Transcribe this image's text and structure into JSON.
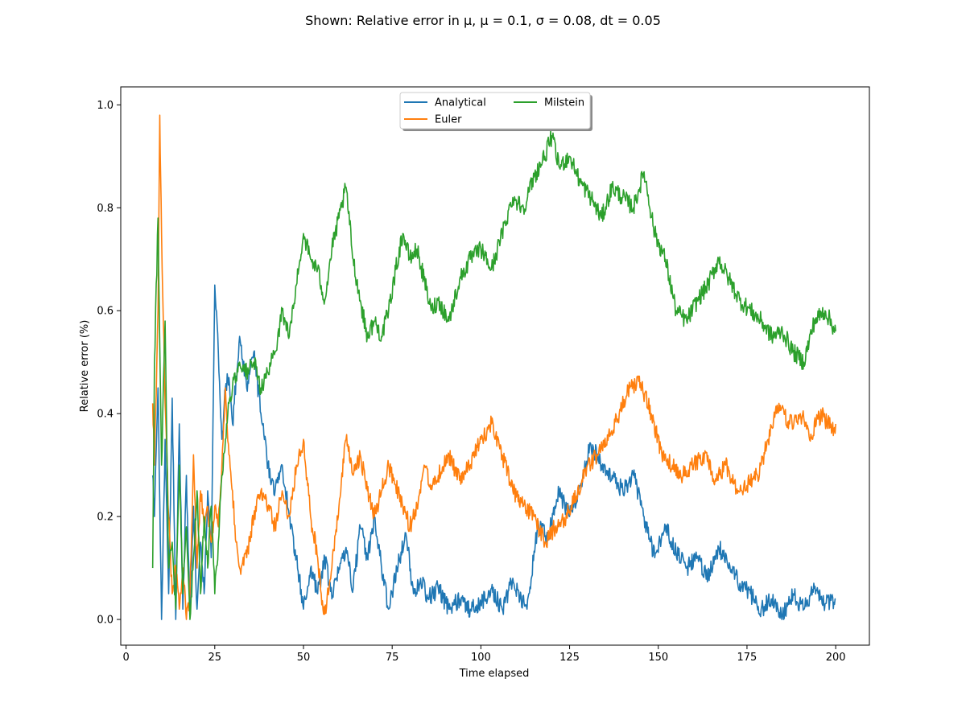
{
  "figure": {
    "title": "Shown: Relative error in μ, μ = 0.1, σ = 0.08, dt = 0.05"
  },
  "chart_data": {
    "type": "line",
    "title": "Shown: Relative error in μ, μ = 0.1, σ = 0.08, dt = 0.05",
    "xlabel": "Time elapsed",
    "ylabel": "Relative error (%)",
    "xlim": [
      -1.5,
      209.5
    ],
    "ylim": [
      -0.05,
      1.035
    ],
    "xticks": [
      0,
      25,
      50,
      75,
      100,
      125,
      150,
      175,
      200
    ],
    "xtick_labels": [
      "0",
      "25",
      "50",
      "75",
      "100",
      "125",
      "150",
      "175",
      "200"
    ],
    "yticks": [
      0.0,
      0.2,
      0.4,
      0.6,
      0.8,
      1.0
    ],
    "ytick_labels": [
      "0.0",
      "0.2",
      "0.4",
      "0.6",
      "0.8",
      "1.0"
    ],
    "grid": false,
    "legend": {
      "placement": "upper center",
      "columns": 2,
      "shadow": true
    },
    "series": [
      {
        "name": "Analytical",
        "color": "#1f77b4",
        "x": [
          7.5,
          8,
          9,
          10,
          11,
          12,
          13,
          14,
          15,
          16,
          17,
          18,
          19,
          20,
          21,
          22,
          23,
          24,
          25,
          26,
          27,
          28,
          29,
          30,
          32,
          34,
          36,
          38,
          40,
          42,
          44,
          46,
          48,
          50,
          52,
          54,
          56,
          58,
          60,
          62,
          64,
          66,
          68,
          70,
          72,
          74,
          75,
          77,
          79,
          81,
          83,
          85,
          88,
          91,
          94,
          97,
          100,
          103,
          106,
          109,
          111,
          113,
          116,
          119,
          122,
          125,
          128,
          131,
          134,
          137,
          140,
          143,
          146,
          149,
          152,
          155,
          158,
          161,
          164,
          167,
          170,
          173,
          176,
          179,
          182,
          185,
          188,
          191,
          194,
          197,
          200
        ],
        "y": [
          0.28,
          0.2,
          0.45,
          0.0,
          0.35,
          0.05,
          0.43,
          0.0,
          0.38,
          0.02,
          0.28,
          0.01,
          0.22,
          0.02,
          0.15,
          0.05,
          0.25,
          0.12,
          0.65,
          0.52,
          0.35,
          0.45,
          0.47,
          0.38,
          0.55,
          0.45,
          0.52,
          0.4,
          0.3,
          0.25,
          0.3,
          0.2,
          0.12,
          0.02,
          0.1,
          0.05,
          0.12,
          0.04,
          0.1,
          0.14,
          0.06,
          0.18,
          0.12,
          0.2,
          0.1,
          0.02,
          0.05,
          0.12,
          0.16,
          0.05,
          0.08,
          0.04,
          0.06,
          0.02,
          0.04,
          0.02,
          0.03,
          0.06,
          0.02,
          0.08,
          0.04,
          0.02,
          0.18,
          0.16,
          0.25,
          0.2,
          0.26,
          0.34,
          0.3,
          0.28,
          0.25,
          0.28,
          0.2,
          0.12,
          0.18,
          0.13,
          0.1,
          0.12,
          0.08,
          0.14,
          0.11,
          0.07,
          0.05,
          0.02,
          0.04,
          0.01,
          0.05,
          0.02,
          0.06,
          0.03,
          0.04
        ]
      },
      {
        "name": "Euler",
        "color": "#ff7f0e",
        "x": [
          7.5,
          8,
          9,
          9.5,
          10,
          11,
          12,
          13,
          14,
          15,
          16,
          17,
          18,
          19,
          20,
          21,
          22,
          23,
          24,
          25,
          26,
          27,
          28,
          29,
          30,
          31,
          32,
          34,
          36,
          38,
          40,
          42,
          44,
          46,
          48,
          50,
          52,
          54,
          55,
          56,
          58,
          60,
          62,
          64,
          66,
          68,
          70,
          72,
          74,
          76,
          78,
          80,
          82,
          84,
          86,
          88,
          91,
          94,
          97,
          100,
          103,
          106,
          109,
          112,
          115,
          118,
          121,
          124,
          127,
          130,
          133,
          136,
          139,
          142,
          145,
          148,
          151,
          154,
          157,
          160,
          163,
          166,
          169,
          172,
          175,
          178,
          181,
          184,
          187,
          190,
          193,
          196,
          199,
          200
        ],
        "y": [
          0.42,
          0.3,
          0.6,
          0.98,
          0.75,
          0.42,
          0.2,
          0.05,
          0.1,
          0.02,
          0.1,
          0.0,
          0.05,
          0.32,
          0.1,
          0.25,
          0.18,
          0.22,
          0.15,
          0.22,
          0.18,
          0.3,
          0.45,
          0.32,
          0.25,
          0.15,
          0.1,
          0.12,
          0.2,
          0.25,
          0.22,
          0.18,
          0.25,
          0.2,
          0.3,
          0.35,
          0.2,
          0.12,
          0.05,
          0.01,
          0.1,
          0.22,
          0.35,
          0.28,
          0.32,
          0.25,
          0.2,
          0.25,
          0.3,
          0.26,
          0.22,
          0.18,
          0.22,
          0.3,
          0.26,
          0.28,
          0.32,
          0.27,
          0.3,
          0.35,
          0.38,
          0.32,
          0.25,
          0.22,
          0.2,
          0.15,
          0.18,
          0.2,
          0.24,
          0.3,
          0.32,
          0.36,
          0.4,
          0.45,
          0.46,
          0.4,
          0.32,
          0.3,
          0.28,
          0.3,
          0.32,
          0.27,
          0.3,
          0.25,
          0.26,
          0.28,
          0.35,
          0.42,
          0.38,
          0.4,
          0.36,
          0.4,
          0.37,
          0.38
        ]
      },
      {
        "name": "Milstein",
        "color": "#2ca02c",
        "x": [
          7.5,
          8,
          9,
          10,
          11,
          12,
          13,
          14,
          15,
          16,
          17,
          18,
          19,
          20,
          21,
          22,
          23,
          24,
          25,
          26,
          27,
          28,
          29,
          30,
          32,
          34,
          36,
          38,
          40,
          42,
          44,
          46,
          48,
          50,
          52,
          54,
          56,
          58,
          60,
          62,
          64,
          66,
          68,
          70,
          72,
          74,
          76,
          78,
          80,
          82,
          84,
          86,
          88,
          91,
          94,
          97,
          100,
          103,
          106,
          109,
          112,
          115,
          118,
          120,
          122,
          125,
          128,
          131,
          134,
          137,
          140,
          143,
          146,
          149,
          152,
          155,
          158,
          161,
          164,
          167,
          170,
          173,
          176,
          179,
          182,
          185,
          188,
          191,
          194,
          197,
          200
        ],
        "y": [
          0.1,
          0.5,
          0.78,
          0.3,
          0.58,
          0.1,
          0.15,
          0.02,
          0.3,
          0.05,
          0.18,
          0.0,
          0.12,
          0.25,
          0.05,
          0.2,
          0.1,
          0.22,
          0.05,
          0.15,
          0.28,
          0.35,
          0.42,
          0.45,
          0.5,
          0.48,
          0.5,
          0.45,
          0.48,
          0.52,
          0.6,
          0.55,
          0.65,
          0.75,
          0.7,
          0.68,
          0.62,
          0.72,
          0.78,
          0.84,
          0.7,
          0.62,
          0.55,
          0.58,
          0.55,
          0.6,
          0.68,
          0.75,
          0.7,
          0.72,
          0.66,
          0.6,
          0.62,
          0.58,
          0.66,
          0.7,
          0.72,
          0.68,
          0.75,
          0.82,
          0.8,
          0.86,
          0.9,
          0.94,
          0.88,
          0.9,
          0.85,
          0.82,
          0.78,
          0.84,
          0.82,
          0.8,
          0.87,
          0.75,
          0.7,
          0.6,
          0.58,
          0.62,
          0.65,
          0.7,
          0.66,
          0.62,
          0.6,
          0.58,
          0.55,
          0.56,
          0.52,
          0.5,
          0.58,
          0.6,
          0.56
        ]
      }
    ]
  }
}
